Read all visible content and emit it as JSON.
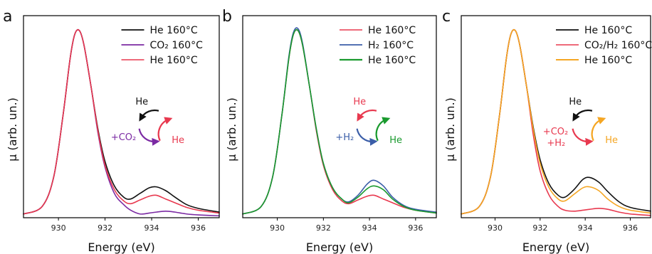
{
  "colors": {
    "black": "#111111",
    "purple": "#7b2aa3",
    "red": "#e8394f",
    "blue": "#3b5ea8",
    "green": "#1a9a2e",
    "orange": "#f5a623"
  },
  "chart_data": [
    {
      "type": "line",
      "panel_letter": "a",
      "xlabel": "Energy (eV)",
      "ylabel": "μ (arb. un.)",
      "xlim": [
        928.5,
        936.9
      ],
      "ylim": [
        0,
        1.08
      ],
      "x_ticks": [
        930,
        932,
        934,
        936
      ],
      "legend_position": "top-right",
      "series": [
        {
          "name": "He 160°C",
          "color_key": "black",
          "width": 1.4,
          "x": [
            928.5,
            929.3,
            929.8,
            930.2,
            930.5,
            930.7,
            930.9,
            931.1,
            931.4,
            931.7,
            932.0,
            932.4,
            932.8,
            933.1,
            933.5,
            933.9,
            934.2,
            934.6,
            935.0,
            935.5,
            936.0,
            936.9
          ],
          "y": [
            0.02,
            0.06,
            0.22,
            0.55,
            0.85,
            0.98,
            1.0,
            0.92,
            0.7,
            0.47,
            0.3,
            0.17,
            0.11,
            0.1,
            0.13,
            0.16,
            0.165,
            0.145,
            0.11,
            0.07,
            0.05,
            0.03
          ]
        },
        {
          "name": "CO₂ 160°C",
          "color_key": "purple",
          "width": 1.4,
          "x": [
            928.5,
            929.3,
            929.8,
            930.2,
            930.5,
            930.7,
            930.9,
            931.1,
            931.4,
            931.7,
            932.0,
            932.4,
            932.8,
            933.1,
            933.5,
            933.9,
            934.2,
            934.6,
            935.0,
            935.5,
            936.0,
            936.9
          ],
          "y": [
            0.02,
            0.06,
            0.22,
            0.55,
            0.85,
            0.98,
            1.0,
            0.92,
            0.7,
            0.45,
            0.27,
            0.13,
            0.07,
            0.04,
            0.02,
            0.025,
            0.03,
            0.035,
            0.03,
            0.02,
            0.015,
            0.01
          ]
        },
        {
          "name": "He 160°C",
          "color_key": "red",
          "width": 1.2,
          "x": [
            928.5,
            929.3,
            929.8,
            930.2,
            930.5,
            930.7,
            930.9,
            931.1,
            931.4,
            931.7,
            932.0,
            932.4,
            932.8,
            933.1,
            933.5,
            933.9,
            934.2,
            934.6,
            935.0,
            935.5,
            936.0,
            936.9
          ],
          "y": [
            0.02,
            0.06,
            0.22,
            0.55,
            0.85,
            0.98,
            1.0,
            0.92,
            0.7,
            0.46,
            0.28,
            0.15,
            0.09,
            0.075,
            0.095,
            0.115,
            0.12,
            0.1,
            0.08,
            0.055,
            0.04,
            0.025
          ]
        }
      ],
      "cycle": {
        "top": "He",
        "top_color_key": "black",
        "left": "+CO₂",
        "left_color_key": "purple",
        "right": "He",
        "right_color_key": "red"
      }
    },
    {
      "type": "line",
      "panel_letter": "b",
      "xlabel": "Energy (eV)",
      "ylabel": "μ (arb. un.)",
      "xlim": [
        928.5,
        936.9
      ],
      "ylim": [
        0,
        1.08
      ],
      "x_ticks": [
        930,
        932,
        934,
        936
      ],
      "legend_position": "top-right",
      "series": [
        {
          "name": "He 160°C",
          "color_key": "red",
          "width": 1.2,
          "x": [
            928.5,
            929.3,
            929.8,
            930.2,
            930.5,
            930.7,
            930.9,
            931.1,
            931.4,
            931.7,
            932.0,
            932.4,
            932.8,
            933.1,
            933.5,
            933.9,
            934.2,
            934.6,
            935.0,
            935.5,
            936.0,
            936.9
          ],
          "y": [
            0.02,
            0.06,
            0.22,
            0.55,
            0.85,
            0.98,
            1.0,
            0.92,
            0.7,
            0.46,
            0.28,
            0.15,
            0.09,
            0.075,
            0.095,
            0.115,
            0.12,
            0.1,
            0.08,
            0.055,
            0.04,
            0.025
          ]
        },
        {
          "name": "H₂ 160°C",
          "color_key": "blue",
          "width": 1.4,
          "x": [
            928.5,
            929.3,
            929.8,
            930.2,
            930.5,
            930.7,
            930.9,
            931.1,
            931.4,
            931.7,
            932.0,
            932.4,
            932.8,
            933.1,
            933.5,
            933.9,
            934.2,
            934.6,
            935.0,
            935.5,
            936.0,
            936.9
          ],
          "y": [
            0.02,
            0.06,
            0.22,
            0.55,
            0.86,
            0.99,
            1.01,
            0.93,
            0.7,
            0.47,
            0.29,
            0.16,
            0.1,
            0.085,
            0.12,
            0.18,
            0.2,
            0.17,
            0.11,
            0.065,
            0.045,
            0.03
          ]
        },
        {
          "name": "He 160°C",
          "color_key": "green",
          "width": 2.0,
          "x": [
            928.5,
            929.3,
            929.8,
            930.2,
            930.5,
            930.7,
            930.9,
            931.1,
            931.4,
            931.7,
            932.0,
            932.4,
            932.8,
            933.1,
            933.5,
            933.9,
            934.2,
            934.6,
            935.0,
            935.5,
            936.0,
            936.9
          ],
          "y": [
            0.02,
            0.06,
            0.22,
            0.55,
            0.85,
            0.98,
            1.0,
            0.92,
            0.7,
            0.47,
            0.29,
            0.16,
            0.1,
            0.08,
            0.11,
            0.155,
            0.17,
            0.15,
            0.1,
            0.06,
            0.04,
            0.025
          ]
        }
      ],
      "cycle": {
        "top": "He",
        "top_color_key": "red",
        "left": "+H₂",
        "left_color_key": "blue",
        "right": "He",
        "right_color_key": "green"
      }
    },
    {
      "type": "line",
      "panel_letter": "c",
      "xlabel": "Energy (eV)",
      "ylabel": "μ (arb. un.)",
      "xlim": [
        928.5,
        936.9
      ],
      "ylim": [
        0,
        1.08
      ],
      "x_ticks": [
        930,
        932,
        934,
        936
      ],
      "legend_position": "top-right",
      "series": [
        {
          "name": "He 160°C",
          "color_key": "black",
          "width": 1.4,
          "x": [
            928.5,
            929.3,
            929.8,
            930.2,
            930.5,
            930.7,
            930.9,
            931.1,
            931.4,
            931.7,
            932.0,
            932.4,
            932.8,
            933.1,
            933.5,
            933.9,
            934.2,
            934.6,
            935.0,
            935.5,
            936.0,
            936.9
          ],
          "y": [
            0.02,
            0.06,
            0.22,
            0.55,
            0.85,
            0.98,
            1.0,
            0.92,
            0.7,
            0.48,
            0.31,
            0.18,
            0.12,
            0.11,
            0.15,
            0.205,
            0.215,
            0.19,
            0.14,
            0.085,
            0.055,
            0.035
          ]
        },
        {
          "name": "CO₂/H₂ 160°C",
          "color_key": "red",
          "width": 1.2,
          "x": [
            928.5,
            929.3,
            929.8,
            930.2,
            930.5,
            930.7,
            930.9,
            931.1,
            931.4,
            931.7,
            932.0,
            932.4,
            932.8,
            933.1,
            933.5,
            933.9,
            934.2,
            934.6,
            935.0,
            935.5,
            936.0,
            936.9
          ],
          "y": [
            0.02,
            0.06,
            0.22,
            0.55,
            0.85,
            0.98,
            1.0,
            0.92,
            0.7,
            0.44,
            0.25,
            0.12,
            0.06,
            0.04,
            0.035,
            0.04,
            0.045,
            0.05,
            0.045,
            0.03,
            0.02,
            0.012
          ]
        },
        {
          "name": "He 160°C",
          "color_key": "orange",
          "width": 1.6,
          "x": [
            928.5,
            929.3,
            929.8,
            930.2,
            930.5,
            930.7,
            930.9,
            931.1,
            931.4,
            931.7,
            932.0,
            932.4,
            932.8,
            933.1,
            933.5,
            933.9,
            934.2,
            934.6,
            935.0,
            935.5,
            936.0,
            936.9
          ],
          "y": [
            0.02,
            0.06,
            0.22,
            0.55,
            0.85,
            0.98,
            1.0,
            0.92,
            0.7,
            0.47,
            0.29,
            0.16,
            0.1,
            0.09,
            0.125,
            0.16,
            0.165,
            0.145,
            0.1,
            0.06,
            0.04,
            0.025
          ]
        }
      ],
      "cycle": {
        "top": "He",
        "top_color_key": "black",
        "left": "+CO₂",
        "left2": "+H₂",
        "left_color_key": "red",
        "right": "He",
        "right_color_key": "orange"
      }
    }
  ]
}
